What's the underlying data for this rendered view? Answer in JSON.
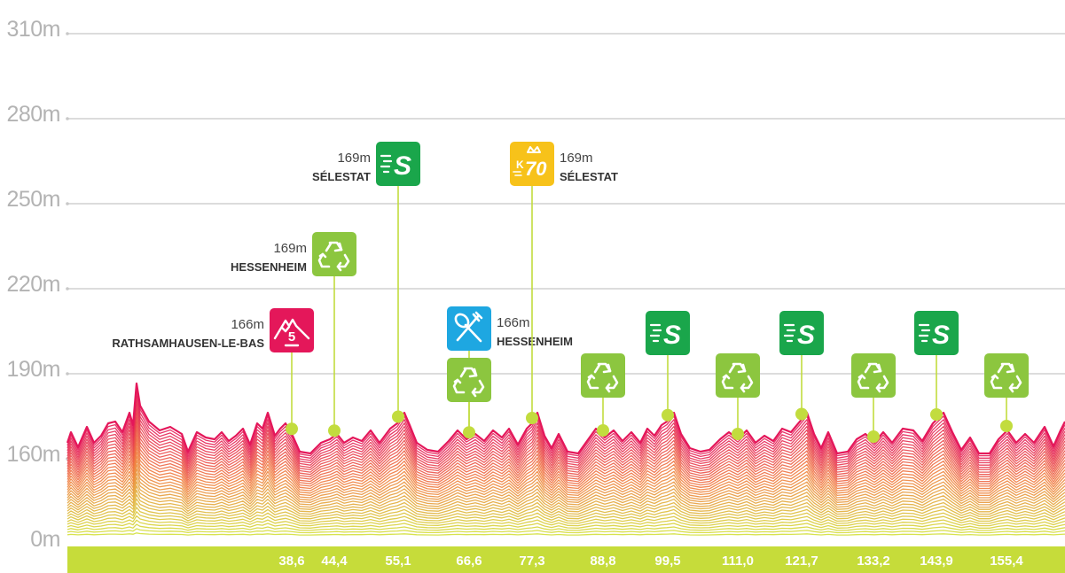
{
  "chart_data": {
    "type": "area",
    "title": "",
    "xlabel": "",
    "ylabel": "",
    "y_ticks": [
      "0m",
      "160m",
      "190m",
      "220m",
      "250m",
      "280m",
      "310m"
    ],
    "x_ticks": [
      "38,6",
      "44,4",
      "55,1",
      "66,6",
      "77,3",
      "88,8",
      "99,5",
      "111,0",
      "121,7",
      "133,2",
      "143,9",
      "155,4"
    ],
    "colors": {
      "grid": "#c8c8c8",
      "axis_text": "#b3b3b3",
      "profile_top": "#e4175a",
      "profile_bottom": "#cfe03a",
      "baseline": "#c6dc3a",
      "stick": "#c2dc3e",
      "sprint": "#1aa64b",
      "recycle": "#8cc63f",
      "climb": "#e4175a",
      "feed": "#1ea7e1",
      "k70": "#f7c21a"
    },
    "waypoints": [
      {
        "km": "38,6",
        "type": "climb",
        "icon": "mountain-icon",
        "alt": "166m",
        "name": "RATHSAMHAUSEN-LE-BAS",
        "label_side": "left"
      },
      {
        "km": "44,4",
        "type": "recycle",
        "icon": "recycle-icon",
        "alt": "169m",
        "name": "HESSENHEIM",
        "label_side": "left"
      },
      {
        "km": "55,1",
        "type": "sprint",
        "icon": "sprint-icon",
        "alt": "169m",
        "name": "SÉLESTAT",
        "label_side": "left"
      },
      {
        "km": "66,6",
        "type": "feed",
        "icon": "feed-zone-icon",
        "alt": "166m",
        "name": "HESSENHEIM",
        "label_side": "right"
      },
      {
        "km": "66,6",
        "type": "recycle",
        "icon": "recycle-icon",
        "alt": "",
        "name": "",
        "label_side": "none"
      },
      {
        "km": "77,3",
        "type": "k70",
        "icon": "k70-crown-icon",
        "alt": "169m",
        "name": "SÉLESTAT",
        "label_side": "right"
      },
      {
        "km": "88,8",
        "type": "recycle",
        "icon": "recycle-icon",
        "alt": "",
        "name": "",
        "label_side": "none"
      },
      {
        "km": "99,5",
        "type": "sprint",
        "icon": "sprint-icon",
        "alt": "",
        "name": "",
        "label_side": "none"
      },
      {
        "km": "111,0",
        "type": "recycle",
        "icon": "recycle-icon",
        "alt": "",
        "name": "",
        "label_side": "none"
      },
      {
        "km": "121,7",
        "type": "sprint",
        "icon": "sprint-icon",
        "alt": "",
        "name": "",
        "label_side": "none"
      },
      {
        "km": "133,2",
        "type": "recycle",
        "icon": "recycle-icon",
        "alt": "",
        "name": "",
        "label_side": "none"
      },
      {
        "km": "143,9",
        "type": "sprint",
        "icon": "sprint-icon",
        "alt": "",
        "name": "",
        "label_side": "none"
      },
      {
        "km": "155,4",
        "type": "recycle",
        "icon": "recycle-icon",
        "alt": "",
        "name": "",
        "label_side": "none"
      }
    ],
    "grid": true,
    "legend": "none"
  }
}
